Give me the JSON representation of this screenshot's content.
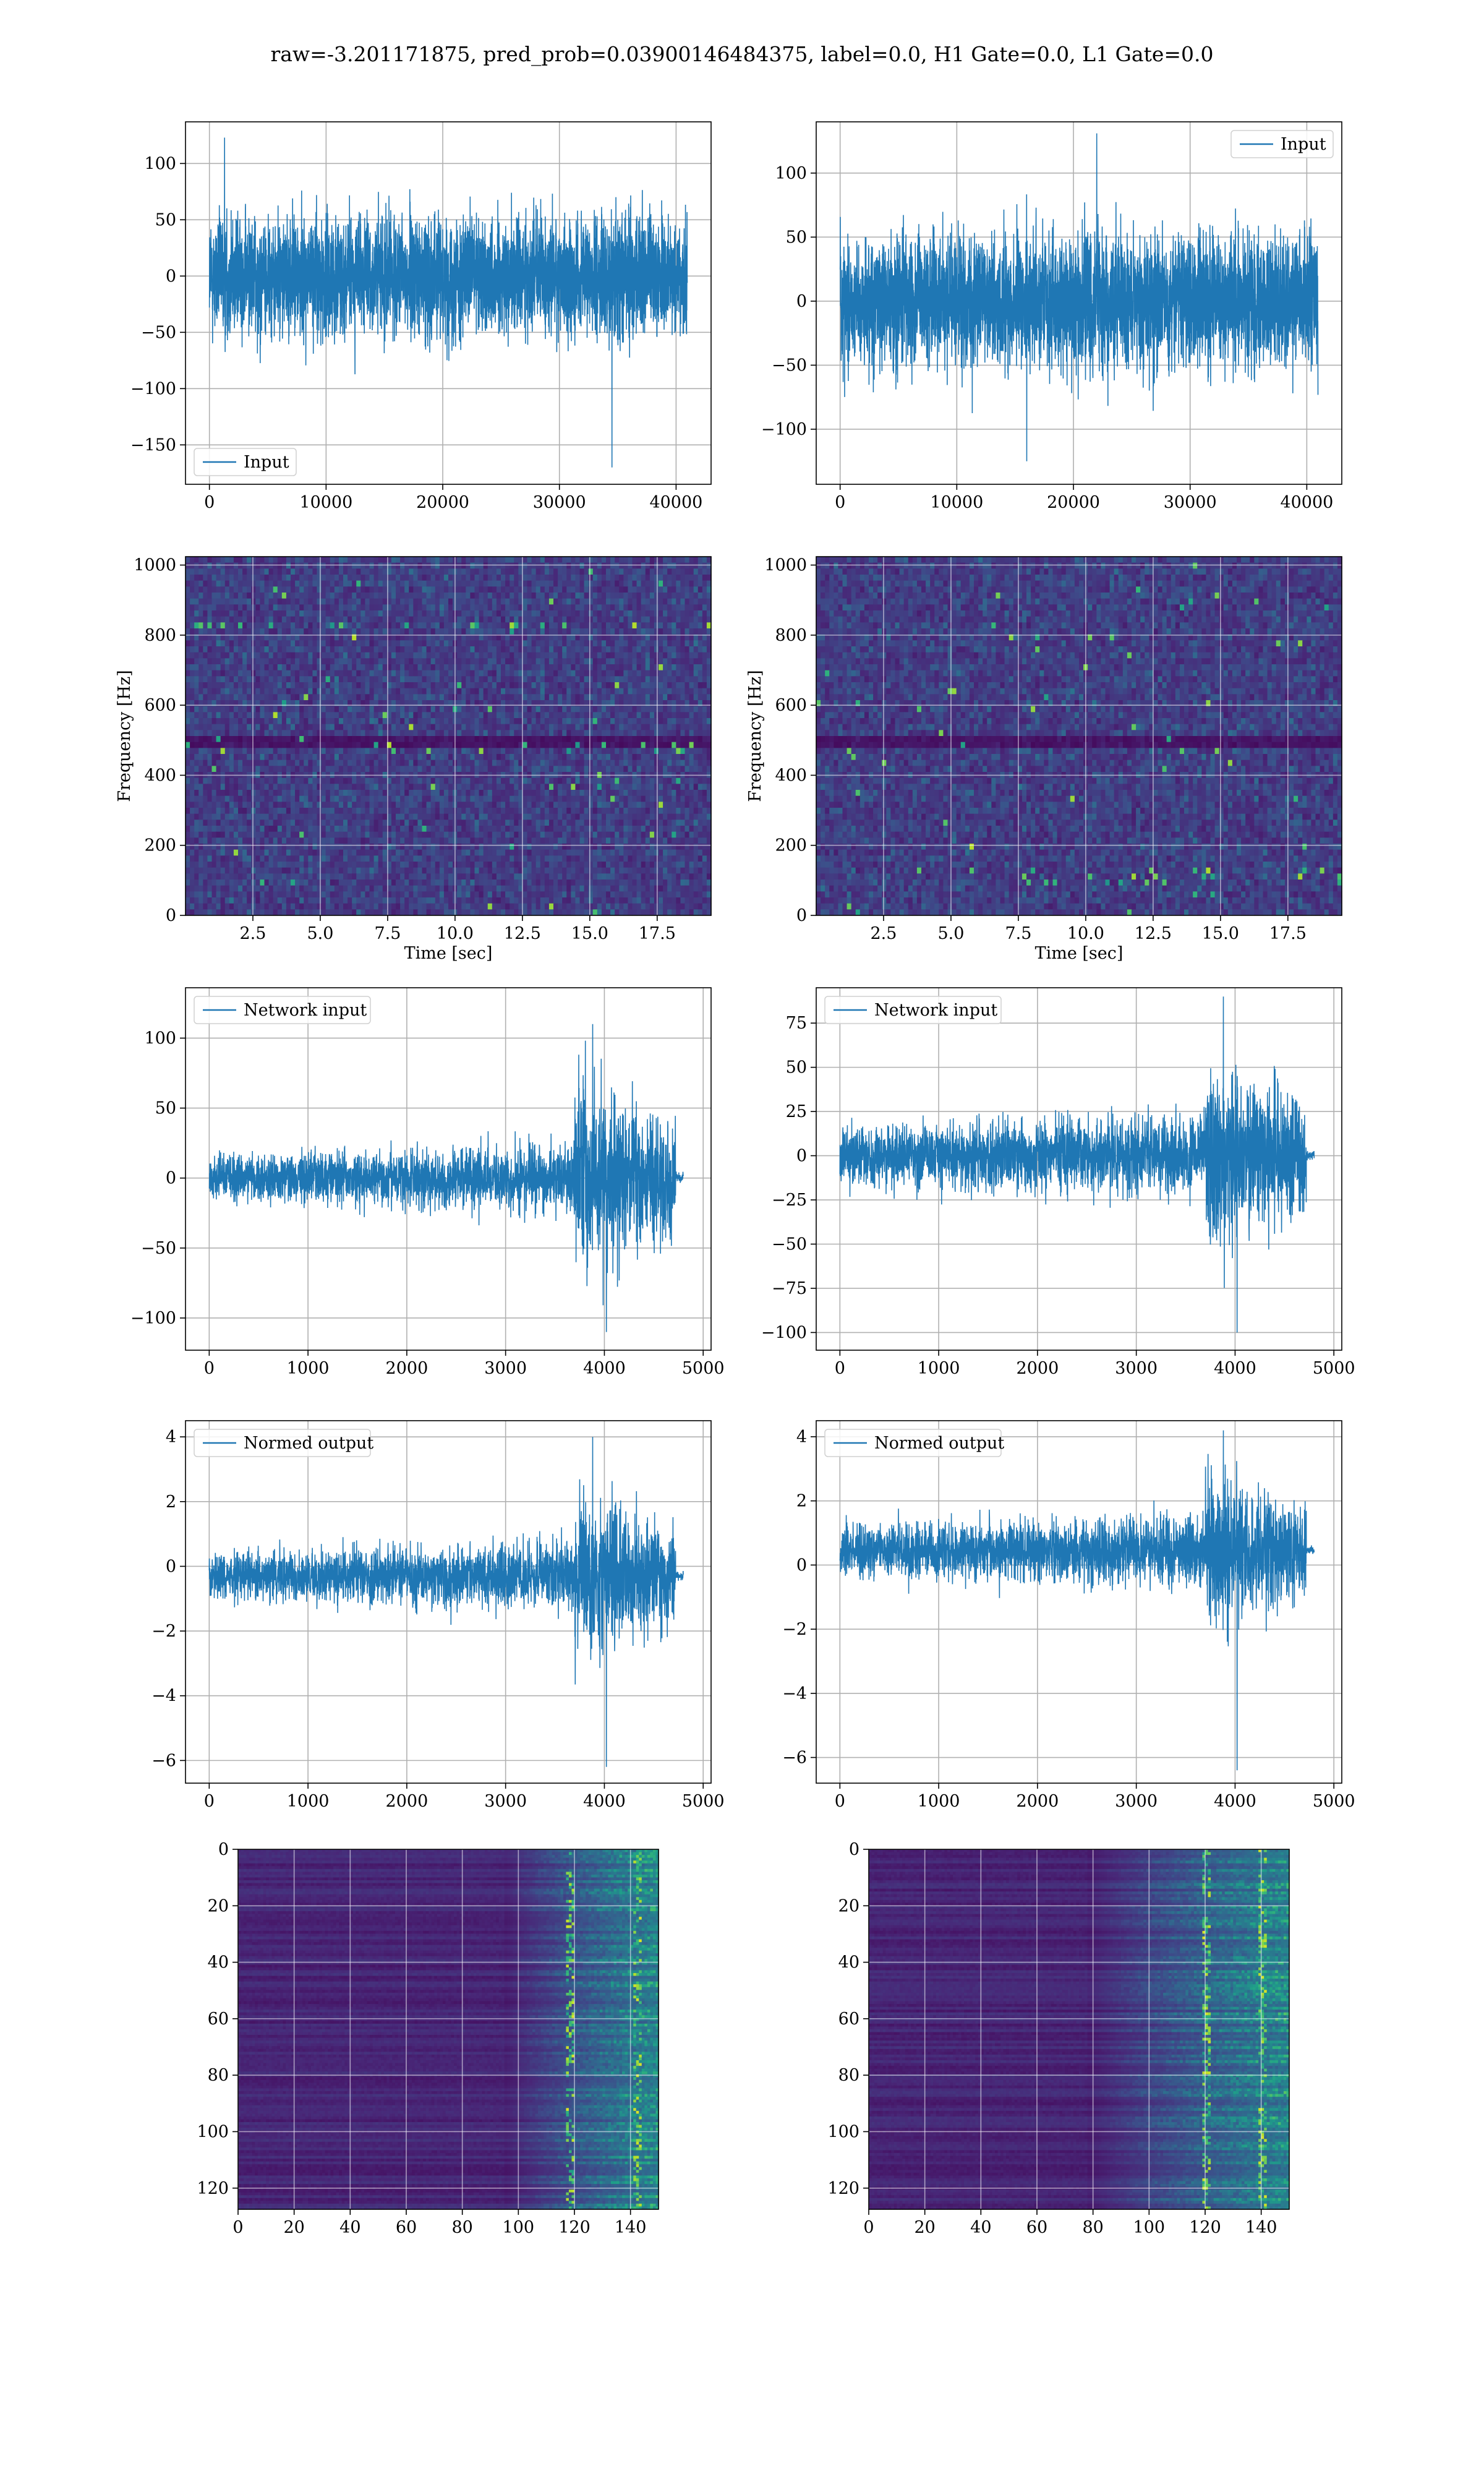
{
  "figure": {
    "suptitle": "raw=-3.201171875, pred_prob=0.03900146484375, label=0.0, H1 Gate=0.0, L1 Gate=0.0",
    "line_color": "#1f77b4"
  },
  "chart_data": [
    {
      "type": "line",
      "row": 1,
      "col": 1,
      "title": "",
      "xlabel": "",
      "ylabel": "",
      "xlim": [
        -2050,
        43000
      ],
      "ylim": [
        -185,
        137
      ],
      "xticks": [
        0,
        10000,
        20000,
        30000,
        40000
      ],
      "xtick_labels": [
        "0",
        "10000",
        "20000",
        "30000",
        "40000"
      ],
      "yticks": [
        -150,
        -100,
        -50,
        0,
        50,
        100
      ],
      "ytick_labels": [
        "−150",
        "−100",
        "−50",
        "0",
        "50",
        "100"
      ],
      "grid": true,
      "legend": {
        "location": "lower-left"
      },
      "series": [
        {
          "name": "Input",
          "n_samples": 40960,
          "x_range": [
            0,
            40960
          ],
          "envelope": {
            "typical_upper": 70,
            "typical_lower": -75,
            "max": 123,
            "min": -170,
            "max_at": 1300,
            "min_at": 34500
          }
        }
      ]
    },
    {
      "type": "line",
      "row": 1,
      "col": 2,
      "title": "",
      "xlabel": "",
      "ylabel": "",
      "xlim": [
        -2050,
        43000
      ],
      "ylim": [
        -143,
        140
      ],
      "xticks": [
        0,
        10000,
        20000,
        30000,
        40000
      ],
      "xtick_labels": [
        "0",
        "10000",
        "20000",
        "30000",
        "40000"
      ],
      "yticks": [
        -100,
        -50,
        0,
        50,
        100
      ],
      "ytick_labels": [
        "−100",
        "−50",
        "0",
        "50",
        "100"
      ],
      "grid": true,
      "legend": {
        "location": "upper-right"
      },
      "series": [
        {
          "name": "Input",
          "n_samples": 40960,
          "x_range": [
            0,
            40960
          ],
          "envelope": {
            "typical_upper": 68,
            "typical_lower": -70,
            "max": 131,
            "min": -125,
            "max_at": 22000,
            "min_at": 16000
          }
        }
      ]
    },
    {
      "type": "heatmap",
      "row": 2,
      "col": 1,
      "title": "",
      "xlabel": "Time [sec]",
      "ylabel": "Frequency [Hz]",
      "xlim": [
        0,
        19.5
      ],
      "ylim": [
        0,
        1024
      ],
      "xticks": [
        2.5,
        5.0,
        7.5,
        10.0,
        12.5,
        15.0,
        17.5
      ],
      "xtick_labels": [
        "2.5",
        "5.0",
        "7.5",
        "10.0",
        "12.5",
        "15.0",
        "17.5"
      ],
      "yticks": [
        0,
        200,
        400,
        600,
        800,
        1000
      ],
      "ytick_labels": [
        "0",
        "200",
        "400",
        "600",
        "800",
        "1000"
      ],
      "grid": true,
      "colormap": "viridis",
      "features": {
        "dark_band_hz": 500,
        "bright_spots_hz": [
          830,
          480,
          370
        ]
      }
    },
    {
      "type": "heatmap",
      "row": 2,
      "col": 2,
      "title": "",
      "xlabel": "Time [sec]",
      "ylabel": "Frequency [Hz]",
      "xlim": [
        0,
        19.5
      ],
      "ylim": [
        0,
        1024
      ],
      "xticks": [
        2.5,
        5.0,
        7.5,
        10.0,
        12.5,
        15.0,
        17.5
      ],
      "xtick_labels": [
        "2.5",
        "5.0",
        "7.5",
        "10.0",
        "12.5",
        "15.0",
        "17.5"
      ],
      "yticks": [
        0,
        200,
        400,
        600,
        800,
        1000
      ],
      "ytick_labels": [
        "0",
        "200",
        "400",
        "600",
        "800",
        "1000"
      ],
      "grid": true,
      "colormap": "viridis",
      "features": {
        "dark_band_hz": 500,
        "bright_spots_hz": [
          90,
          120
        ]
      }
    },
    {
      "type": "line",
      "row": 3,
      "col": 1,
      "title": "",
      "xlabel": "",
      "ylabel": "",
      "xlim": [
        -240,
        5080
      ],
      "ylim": [
        -123,
        136
      ],
      "xticks": [
        0,
        1000,
        2000,
        3000,
        4000,
        5000
      ],
      "xtick_labels": [
        "0",
        "1000",
        "2000",
        "3000",
        "4000",
        "5000"
      ],
      "yticks": [
        -100,
        -50,
        0,
        50,
        100
      ],
      "ytick_labels": [
        "−100",
        "−50",
        "0",
        "50",
        "100"
      ],
      "grid": true,
      "legend": {
        "location": "upper-left"
      },
      "series": [
        {
          "name": "Network input",
          "n_samples": 4800,
          "x_range": [
            0,
            4800
          ],
          "envelope": {
            "start_amp": 18,
            "mid_amp": 28,
            "burst_start": 3700,
            "burst_end": 4720,
            "burst_amp": 80,
            "max": 110,
            "min": -110,
            "tail_amp": 4
          }
        }
      ]
    },
    {
      "type": "line",
      "row": 3,
      "col": 2,
      "title": "",
      "xlabel": "",
      "ylabel": "",
      "xlim": [
        -240,
        5080
      ],
      "ylim": [
        -110,
        95
      ],
      "xticks": [
        0,
        1000,
        2000,
        3000,
        4000,
        5000
      ],
      "xtick_labels": [
        "0",
        "1000",
        "2000",
        "3000",
        "4000",
        "5000"
      ],
      "yticks": [
        -100,
        -75,
        -50,
        -25,
        0,
        25,
        50,
        75
      ],
      "ytick_labels": [
        "−100",
        "−75",
        "−50",
        "−25",
        "0",
        "25",
        "50",
        "75"
      ],
      "grid": true,
      "legend": {
        "location": "upper-left"
      },
      "series": [
        {
          "name": "Network input",
          "n_samples": 4800,
          "x_range": [
            0,
            4800
          ],
          "envelope": {
            "start_amp": 18,
            "mid_amp": 26,
            "burst_start": 3700,
            "burst_end": 4720,
            "burst_amp": 65,
            "max": 90,
            "min": -100,
            "tail_amp": 3
          }
        }
      ]
    },
    {
      "type": "line",
      "row": 4,
      "col": 1,
      "title": "",
      "xlabel": "",
      "ylabel": "",
      "xlim": [
        -240,
        5080
      ],
      "ylim": [
        -6.7,
        4.5
      ],
      "xticks": [
        0,
        1000,
        2000,
        3000,
        4000,
        5000
      ],
      "xtick_labels": [
        "0",
        "1000",
        "2000",
        "3000",
        "4000",
        "5000"
      ],
      "yticks": [
        -6,
        -4,
        -2,
        0,
        2,
        4
      ],
      "ytick_labels": [
        "−6",
        "−4",
        "−2",
        "0",
        "2",
        "4"
      ],
      "grid": true,
      "legend": {
        "location": "upper-left"
      },
      "series": [
        {
          "name": "Normed output",
          "n_samples": 4800,
          "x_range": [
            0,
            4800
          ],
          "envelope": {
            "offset": -0.3,
            "start_amp": 0.8,
            "mid_amp": 1.2,
            "burst_start": 3700,
            "burst_end": 4720,
            "burst_amp": 3.0,
            "max": 4.0,
            "min": -6.2,
            "tail_amp": 0.15
          }
        }
      ]
    },
    {
      "type": "line",
      "row": 4,
      "col": 2,
      "title": "",
      "xlabel": "",
      "ylabel": "",
      "xlim": [
        -240,
        5080
      ],
      "ylim": [
        -6.8,
        4.5
      ],
      "xticks": [
        0,
        1000,
        2000,
        3000,
        4000,
        5000
      ],
      "xtick_labels": [
        "0",
        "1000",
        "2000",
        "3000",
        "4000",
        "5000"
      ],
      "yticks": [
        -6,
        -4,
        -2,
        0,
        2,
        4
      ],
      "ytick_labels": [
        "−6",
        "−4",
        "−2",
        "0",
        "2",
        "4"
      ],
      "grid": true,
      "legend": {
        "location": "upper-left"
      },
      "series": [
        {
          "name": "Normed output",
          "n_samples": 4800,
          "x_range": [
            0,
            4800
          ],
          "envelope": {
            "offset": 0.45,
            "start_amp": 0.9,
            "mid_amp": 1.3,
            "burst_start": 3700,
            "burst_end": 4720,
            "burst_amp": 3.0,
            "max": 4.2,
            "min": -6.4,
            "tail_amp": 0.15
          }
        }
      ]
    },
    {
      "type": "heatmap",
      "row": 5,
      "col": 1,
      "title": "",
      "xlabel": "",
      "ylabel": "",
      "xlim": [
        0,
        150
      ],
      "ylim": [
        127.5,
        0
      ],
      "xticks": [
        0,
        20,
        40,
        60,
        80,
        100,
        120,
        140
      ],
      "xtick_labels": [
        "0",
        "20",
        "40",
        "60",
        "80",
        "100",
        "120",
        "140"
      ],
      "yticks": [
        0,
        20,
        40,
        60,
        80,
        100,
        120
      ],
      "ytick_labels": [
        "0",
        "20",
        "40",
        "60",
        "80",
        "100",
        "120"
      ],
      "grid": true,
      "colormap": "viridis",
      "features": {
        "onset_column": 95,
        "bright_columns": [
          118,
          142
        ]
      }
    },
    {
      "type": "heatmap",
      "row": 5,
      "col": 2,
      "title": "",
      "xlabel": "",
      "ylabel": "",
      "xlim": [
        0,
        150
      ],
      "ylim": [
        127.5,
        0
      ],
      "xticks": [
        0,
        20,
        40,
        60,
        80,
        100,
        120,
        140
      ],
      "xtick_labels": [
        "0",
        "20",
        "40",
        "60",
        "80",
        "100",
        "120",
        "140"
      ],
      "yticks": [
        0,
        20,
        40,
        60,
        80,
        100,
        120
      ],
      "ytick_labels": [
        "0",
        "20",
        "40",
        "60",
        "80",
        "100",
        "120"
      ],
      "grid": true,
      "colormap": "viridis",
      "features": {
        "onset_column": 78,
        "bright_columns": [
          120,
          140
        ]
      }
    }
  ]
}
